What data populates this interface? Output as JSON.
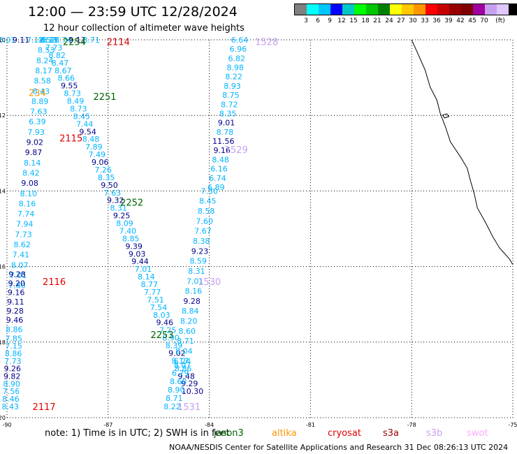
{
  "header": {
    "title": "12:00 — 23:59 UTC 12/28/2024",
    "subtitle": "12 hour collection of altimeter wave heights"
  },
  "legend": {
    "colors": [
      "#808080",
      "#00ffff",
      "#00c8ff",
      "#0000ff",
      "#00c8c8",
      "#00ff00",
      "#00c800",
      "#008000",
      "#ffff00",
      "#ffc800",
      "#ff9600",
      "#ff0000",
      "#c80000",
      "#960000",
      "#800000",
      "#a000a0",
      "#c8a0f0",
      "#e0c8ff",
      "#000000"
    ],
    "labels": [
      "3",
      "6",
      "9",
      "12",
      "15",
      "18",
      "21",
      "24",
      "27",
      "30",
      "33",
      "36",
      "39",
      "42",
      "45",
      "70",
      "(ft)"
    ]
  },
  "map": {
    "lon_range": [
      -90,
      -75
    ],
    "lat_range": [
      -20,
      -10
    ],
    "x_ticks": [
      "-90",
      "-87",
      "-84",
      "-81",
      "-78",
      "-75"
    ],
    "y_ticks": [
      "-10",
      "-12",
      "-14",
      "-16",
      "-18",
      "-20"
    ]
  },
  "tracks": [
    {
      "id": "2114",
      "satellite": "cryosat",
      "color": "#e00000",
      "label_lon": -86.7,
      "label_lat": -10.05,
      "start": [
        -90.0,
        -10.0
      ],
      "end": [
        -87.5,
        -10.0
      ],
      "points": [
        {
          "v": "8.01",
          "c": "#00b4ff"
        },
        {
          "v": "9.11",
          "c": "#00008b"
        },
        {
          "v": "7.12",
          "c": "#00b4ff"
        },
        {
          "v": "8.73",
          "c": "#00b4ff"
        },
        {
          "v": "8.74",
          "c": "#00b4ff"
        },
        {
          "v": "9.17",
          "c": "#00008b"
        },
        {
          "v": "8.71",
          "c": "#00b4ff"
        }
      ]
    },
    {
      "id": "234",
      "satellite": "altika",
      "color": "#ff9600",
      "label_lon": -89.1,
      "label_lat": -11.4,
      "points": []
    },
    {
      "id": "2251",
      "satellite": "jason3",
      "color": "#006400",
      "label_lon": -87.1,
      "label_lat": -11.5,
      "start": [
        -88.7,
        -10.0
      ],
      "end": [
        -84.5,
        -19.3
      ],
      "points": [
        {
          "v": "8.22",
          "c": "#00b4ff"
        },
        {
          "v": "7.73",
          "c": "#00b4ff"
        },
        {
          "v": "8.82",
          "c": "#00b4ff"
        },
        {
          "v": "8.47",
          "c": "#00b4ff"
        },
        {
          "v": "8.67",
          "c": "#00b4ff"
        },
        {
          "v": "8.66",
          "c": "#00b4ff"
        },
        {
          "v": "9.55",
          "c": "#00008b"
        },
        {
          "v": "8.73",
          "c": "#00b4ff"
        },
        {
          "v": "8.49",
          "c": "#00b4ff"
        },
        {
          "v": "8.73",
          "c": "#00b4ff"
        },
        {
          "v": "8.45",
          "c": "#00b4ff"
        },
        {
          "v": "7.44",
          "c": "#00b4ff"
        },
        {
          "v": "9.54",
          "c": "#00008b"
        },
        {
          "v": "8.48",
          "c": "#00b4ff"
        },
        {
          "v": "7.89",
          "c": "#00b4ff"
        },
        {
          "v": "7.49",
          "c": "#00b4ff"
        },
        {
          "v": "9.06",
          "c": "#00008b"
        },
        {
          "v": "7.26",
          "c": "#00b4ff"
        },
        {
          "v": "8.35",
          "c": "#00b4ff"
        },
        {
          "v": "9.50",
          "c": "#00008b"
        },
        {
          "v": "7.63",
          "c": "#00b4ff"
        },
        {
          "v": "9.32",
          "c": "#00008b"
        },
        {
          "v": "8.31",
          "c": "#00b4ff"
        },
        {
          "v": "9.25",
          "c": "#00008b"
        },
        {
          "v": "8.09",
          "c": "#00b4ff"
        },
        {
          "v": "7.40",
          "c": "#00b4ff"
        },
        {
          "v": "8.85",
          "c": "#00b4ff"
        },
        {
          "v": "9.39",
          "c": "#00008b"
        },
        {
          "v": "9.03",
          "c": "#00008b"
        },
        {
          "v": "9.44",
          "c": "#00008b"
        },
        {
          "v": "7.01",
          "c": "#00b4ff"
        },
        {
          "v": "8.14",
          "c": "#00b4ff"
        },
        {
          "v": "8.77",
          "c": "#00b4ff"
        },
        {
          "v": "7.77",
          "c": "#00b4ff"
        },
        {
          "v": "7.51",
          "c": "#00b4ff"
        },
        {
          "v": "7.54",
          "c": "#00b4ff"
        },
        {
          "v": "8.03",
          "c": "#00b4ff"
        },
        {
          "v": "9.46",
          "c": "#00008b"
        },
        {
          "v": "7.25",
          "c": "#00b4ff"
        },
        {
          "v": "8.90",
          "c": "#00b4ff"
        },
        {
          "v": "8.39",
          "c": "#00b4ff"
        },
        {
          "v": "9.02",
          "c": "#00008b"
        },
        {
          "v": "8.17",
          "c": "#00b4ff"
        },
        {
          "v": "8.86",
          "c": "#00b4ff"
        },
        {
          "v": "9.48",
          "c": "#00008b"
        },
        {
          "v": "9.29",
          "c": "#00008b"
        },
        {
          "v": "10.30",
          "c": "#00008b"
        }
      ]
    },
    {
      "id": "2115",
      "satellite": "cryosat",
      "color": "#e00000",
      "label_lon": -88.1,
      "label_lat": -12.6,
      "start": [
        -88.8,
        -10.0
      ],
      "end": [
        -89.7,
        -16.5
      ],
      "points": [
        {
          "v": "8.52",
          "c": "#00b4ff"
        },
        {
          "v": "8.53",
          "c": "#00b4ff"
        },
        {
          "v": "8.24",
          "c": "#00b4ff"
        },
        {
          "v": "8.17",
          "c": "#00b4ff"
        },
        {
          "v": "8.58",
          "c": "#00b4ff"
        },
        {
          "v": "8.43",
          "c": "#00b4ff"
        },
        {
          "v": "8.89",
          "c": "#00b4ff"
        },
        {
          "v": "7.63",
          "c": "#00b4ff"
        },
        {
          "v": "6.39",
          "c": "#00b4ff"
        },
        {
          "v": "7.93",
          "c": "#00b4ff"
        },
        {
          "v": "9.02",
          "c": "#00008b"
        },
        {
          "v": "9.87",
          "c": "#00008b"
        },
        {
          "v": "8.14",
          "c": "#00b4ff"
        },
        {
          "v": "8.42",
          "c": "#00b4ff"
        },
        {
          "v": "9.08",
          "c": "#00008b"
        },
        {
          "v": "8.10",
          "c": "#00b4ff"
        },
        {
          "v": "8.16",
          "c": "#00b4ff"
        },
        {
          "v": "7.74",
          "c": "#00b4ff"
        },
        {
          "v": "7.94",
          "c": "#00b4ff"
        },
        {
          "v": "7.73",
          "c": "#00b4ff"
        },
        {
          "v": "8.62",
          "c": "#00b4ff"
        },
        {
          "v": "7.41",
          "c": "#00b4ff"
        },
        {
          "v": "8.07",
          "c": "#00b4ff"
        },
        {
          "v": "7.01",
          "c": "#00b4ff"
        },
        {
          "v": "7.80",
          "c": "#00b4ff"
        }
      ]
    },
    {
      "id": "2116",
      "satellite": "cryosat",
      "color": "#e00000",
      "label_lon": -88.6,
      "label_lat": -16.4,
      "start": [
        -89.7,
        -16.2
      ],
      "end": [
        -89.8,
        -17.9
      ],
      "points": [
        {
          "v": "9.28",
          "c": "#00008b"
        },
        {
          "v": "9.20",
          "c": "#00008b"
        },
        {
          "v": "9.16",
          "c": "#00008b"
        },
        {
          "v": "9.11",
          "c": "#00008b"
        },
        {
          "v": "9.28",
          "c": "#00008b"
        },
        {
          "v": "9.46",
          "c": "#00008b"
        },
        {
          "v": "8.86",
          "c": "#00b4ff"
        },
        {
          "v": "7.85",
          "c": "#00b4ff"
        }
      ]
    },
    {
      "id": "2117",
      "satellite": "cryosat",
      "color": "#e00000",
      "label_lon": -88.9,
      "label_lat": -19.7,
      "start": [
        -89.8,
        -18.1
      ],
      "end": [
        -89.9,
        -19.7
      ],
      "points": [
        {
          "v": "7.15",
          "c": "#00b4ff"
        },
        {
          "v": "8.86",
          "c": "#00b4ff"
        },
        {
          "v": "7.73",
          "c": "#00b4ff"
        },
        {
          "v": "9.26",
          "c": "#00008b"
        },
        {
          "v": "9.82",
          "c": "#00008b"
        },
        {
          "v": "8.90",
          "c": "#00b4ff"
        },
        {
          "v": "7.56",
          "c": "#00b4ff"
        },
        {
          "v": "8.46",
          "c": "#00b4ff"
        },
        {
          "v": "8.43",
          "c": "#00b4ff"
        }
      ]
    },
    {
      "id": "2252",
      "satellite": "jason3",
      "color": "#006400",
      "label_lon": -86.3,
      "label_lat": -14.3,
      "points": []
    },
    {
      "id": "2253",
      "satellite": "jason3",
      "color": "#006400",
      "label_lon": -85.4,
      "label_lat": -17.8,
      "points": []
    },
    {
      "id": "2254",
      "satellite": "jason3",
      "color": "#006400",
      "label_lon": -88.0,
      "label_lat": -10.05,
      "points": []
    },
    {
      "id": "1528",
      "satellite": "s3b",
      "color": "#c8a0f0",
      "label_lon": -82.3,
      "label_lat": -10.05,
      "start": [
        -83.1,
        -10.0
      ],
      "end": [
        -83.8,
        -13.9
      ],
      "points": [
        {
          "v": "6.64",
          "c": "#00b4ff"
        },
        {
          "v": "6.96",
          "c": "#00b4ff"
        },
        {
          "v": "6.82",
          "c": "#00b4ff"
        },
        {
          "v": "8.98",
          "c": "#00b4ff"
        },
        {
          "v": "8.22",
          "c": "#00b4ff"
        },
        {
          "v": "8.93",
          "c": "#00b4ff"
        },
        {
          "v": "8.75",
          "c": "#00b4ff"
        },
        {
          "v": "8.72",
          "c": "#00b4ff"
        },
        {
          "v": "8.35",
          "c": "#00b4ff"
        },
        {
          "v": "9.01",
          "c": "#00008b"
        },
        {
          "v": "8.78",
          "c": "#00b4ff"
        },
        {
          "v": "11.56",
          "c": "#00008b"
        },
        {
          "v": "9.16",
          "c": "#00008b"
        },
        {
          "v": "8.48",
          "c": "#00b4ff"
        },
        {
          "v": "6.16",
          "c": "#00b4ff"
        },
        {
          "v": "6.74",
          "c": "#00b4ff"
        },
        {
          "v": "6.89",
          "c": "#00b4ff"
        }
      ]
    },
    {
      "id": "1529",
      "satellite": "s3b",
      "color": "#c8a0f0",
      "label_lon": -83.2,
      "label_lat": -12.9,
      "points": []
    },
    {
      "id": "1530",
      "satellite": "s3b",
      "color": "#c8a0f0",
      "label_lon": -84.0,
      "label_lat": -16.4,
      "start": [
        -84.0,
        -14.0
      ],
      "end": [
        -84.8,
        -18.5
      ],
      "points": [
        {
          "v": "7.30",
          "c": "#00b4ff"
        },
        {
          "v": "8.45",
          "c": "#00b4ff"
        },
        {
          "v": "8.58",
          "c": "#00b4ff"
        },
        {
          "v": "7.60",
          "c": "#00b4ff"
        },
        {
          "v": "7.67",
          "c": "#00b4ff"
        },
        {
          "v": "8.38",
          "c": "#00b4ff"
        },
        {
          "v": "9.23",
          "c": "#00008b"
        },
        {
          "v": "8.59",
          "c": "#00b4ff"
        },
        {
          "v": "8.31",
          "c": "#00b4ff"
        },
        {
          "v": "7.01",
          "c": "#00b4ff"
        },
        {
          "v": "8.16",
          "c": "#00b4ff"
        },
        {
          "v": "9.28",
          "c": "#00008b"
        },
        {
          "v": "8.84",
          "c": "#00b4ff"
        },
        {
          "v": "8.20",
          "c": "#00b4ff"
        },
        {
          "v": "8.60",
          "c": "#00b4ff"
        },
        {
          "v": "8.71",
          "c": "#00b4ff"
        },
        {
          "v": "8.04",
          "c": "#00b4ff"
        },
        {
          "v": "6.24",
          "c": "#00b4ff"
        }
      ]
    },
    {
      "id": "1531",
      "satellite": "s3b",
      "color": "#c8a0f0",
      "label_lon": -84.6,
      "label_lat": -19.7,
      "start": [
        -84.8,
        -18.6
      ],
      "end": [
        -85.1,
        -19.7
      ],
      "points": [
        {
          "v": "8.07",
          "c": "#00b4ff"
        },
        {
          "v": "6.79",
          "c": "#00b4ff"
        },
        {
          "v": "8.60",
          "c": "#00b4ff"
        },
        {
          "v": "8.90",
          "c": "#00b4ff"
        },
        {
          "v": "8.71",
          "c": "#00b4ff"
        },
        {
          "v": "8.22",
          "c": "#00b4ff"
        }
      ]
    }
  ],
  "coastline": [
    [
      -78.0,
      -10.0
    ],
    [
      -77.8,
      -10.4
    ],
    [
      -77.6,
      -10.8
    ],
    [
      -77.45,
      -11.25
    ],
    [
      -77.25,
      -11.6
    ],
    [
      -77.15,
      -11.95
    ],
    [
      -77.0,
      -12.3
    ],
    [
      -76.85,
      -12.7
    ],
    [
      -76.55,
      -13.1
    ],
    [
      -76.35,
      -13.4
    ],
    [
      -76.25,
      -13.75
    ],
    [
      -76.15,
      -14.05
    ],
    [
      -76.05,
      -14.45
    ],
    [
      -75.8,
      -14.85
    ],
    [
      -75.6,
      -15.2
    ],
    [
      -75.4,
      -15.5
    ],
    [
      -75.1,
      -15.8
    ],
    [
      -75.0,
      -15.95
    ]
  ],
  "islands": [
    [
      -77.0,
      -12.05
    ]
  ],
  "note": "note: 1) Time is in UTC; 2) SWH is in feet",
  "satellites": [
    {
      "name": "jason3",
      "color": "#006400"
    },
    {
      "name": "altika",
      "color": "#ff9600"
    },
    {
      "name": "cryosat",
      "color": "#e00000"
    },
    {
      "name": "s3a",
      "color": "#960000"
    },
    {
      "name": "s3b",
      "color": "#c8a0f0"
    },
    {
      "name": "swot",
      "color": "#ffaaff"
    }
  ],
  "footer": "NOAA/NESDIS Center for Satellite Applications and Research    31 Dec 08:26:13 UTC 2024"
}
